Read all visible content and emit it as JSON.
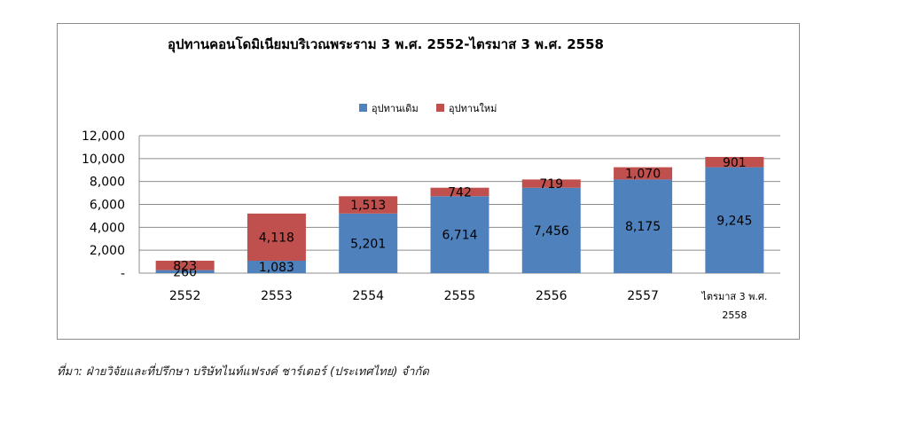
{
  "chart_data": {
    "type": "bar",
    "stacked": true,
    "title": "อุปทานคอนโดมิเนียมบริเวณพระราม 3 พ.ศ. 2552-ไตรมาส 3 พ.ศ. 2558",
    "xlabel": "",
    "ylabel": "",
    "categories": [
      [
        "2552"
      ],
      [
        "2553"
      ],
      [
        "2554"
      ],
      [
        "2555"
      ],
      [
        "2556"
      ],
      [
        "2557"
      ],
      [
        "ไตรมาส 3 พ.ศ.",
        "2558"
      ]
    ],
    "series": [
      {
        "name": "อุปทานเดิม",
        "color": "#4f81bd",
        "values": [
          260,
          1083,
          5201,
          6714,
          7456,
          8175,
          9245
        ],
        "labels": [
          "260",
          "1,083",
          "5,201",
          "6,714",
          "7,456",
          "8,175",
          "9,245"
        ]
      },
      {
        "name": "อุปทานใหม่",
        "color": "#c0504d",
        "values": [
          823,
          4118,
          1513,
          742,
          719,
          1070,
          901
        ],
        "labels": [
          "823",
          "4,118",
          "1,513",
          "742",
          "719",
          "1,070",
          "901"
        ]
      }
    ],
    "ylim": [
      0,
      12000
    ],
    "yticks": [
      0,
      2000,
      4000,
      6000,
      8000,
      10000,
      12000
    ],
    "ytick_labels": [
      "-",
      "2,000",
      "4,000",
      "6,000",
      "8,000",
      "10,000",
      "12,000"
    ],
    "grid": true,
    "legend_position": "top-center"
  },
  "source": "ที่มา: ฝ่ายวิจัยและที่ปรึกษา บริษัทไนท์แฟรงค์ ชาร์เตอร์ (ประเทศไทย) จำกัด"
}
